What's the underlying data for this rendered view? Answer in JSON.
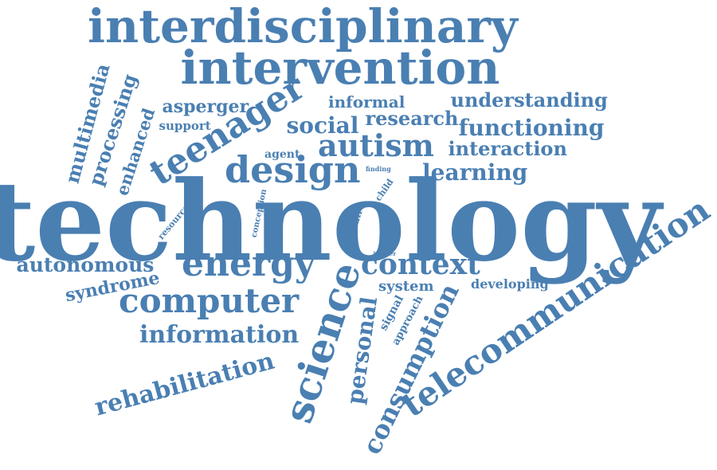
{
  "colors": {
    "word": "#4a7fb2",
    "background": "#ffffff"
  },
  "words": [
    "interdisciplinary",
    "intervention",
    "technology",
    "telecommunication",
    "teenager",
    "autism",
    "design",
    "energy",
    "computer",
    "science",
    "context",
    "consumption",
    "personal",
    "information",
    "rehabilitation",
    "autonomous",
    "syndrome",
    "multimedia",
    "processing",
    "enhanced",
    "asperger",
    "support",
    "social",
    "research",
    "informal",
    "understanding",
    "functioning",
    "interaction",
    "learning",
    "agent",
    "system",
    "developing",
    "signal",
    "approach",
    "resource",
    "conception",
    "skill",
    "child",
    "finding",
    "learner"
  ]
}
